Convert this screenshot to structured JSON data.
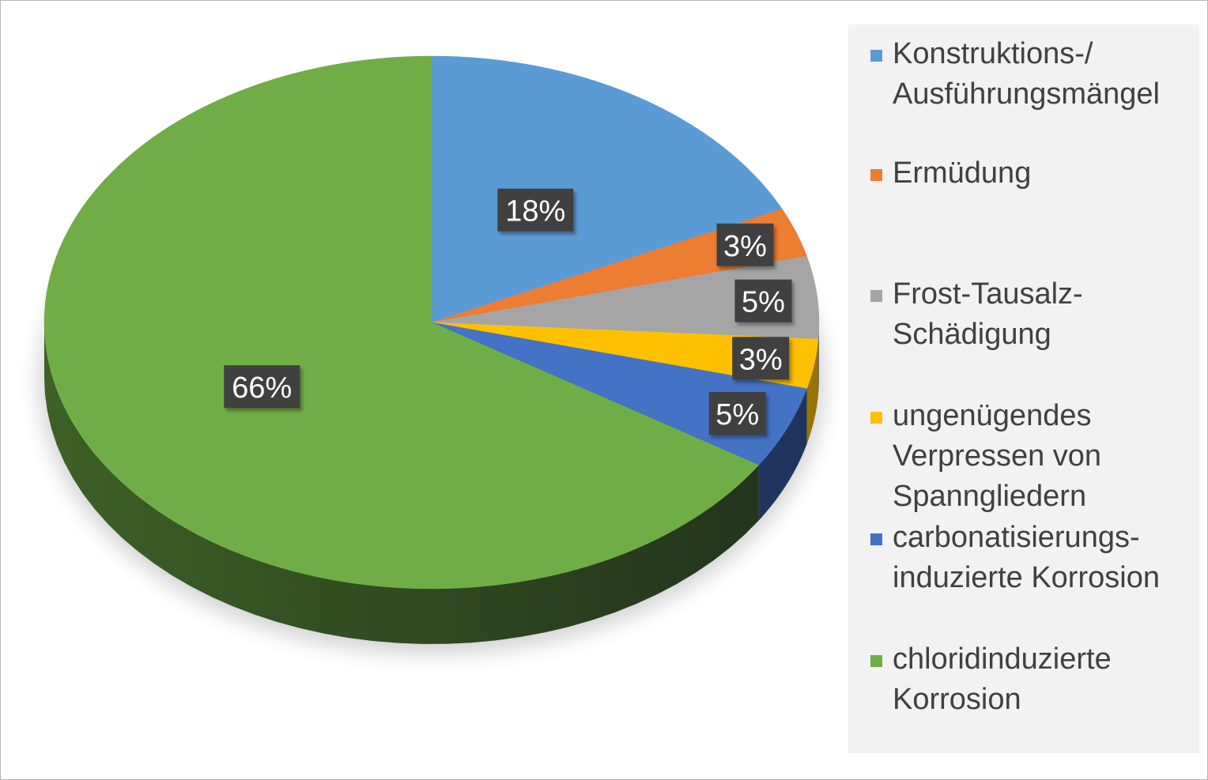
{
  "chart_data": {
    "type": "pie",
    "style": "3d",
    "categories": [
      "Konstruktions-/ Ausführungsmängel",
      "Ermüdung",
      "Frost-Tausalz-Schädigung",
      "ungenügendes Verpressen von Spanngliedern",
      "carbonatisierungs-induzierte Korrosion",
      "chloridinduzierte Korrosion"
    ],
    "values": [
      18,
      3,
      5,
      3,
      5,
      66
    ],
    "data_labels": [
      "18%",
      "3%",
      "5%",
      "3%",
      "5%",
      "66%"
    ],
    "colors": [
      "#5b9bd5",
      "#ed7d31",
      "#a5a5a5",
      "#ffc000",
      "#4472c4",
      "#70ad47"
    ],
    "side_colors": [
      "#2f5f8c",
      "#8a4a1c",
      "#636363",
      "#997300",
      "#1f355e",
      "#3d6127"
    ],
    "legend_position": "right",
    "legend_entries": [
      {
        "label": "Konstruktions-/\nAusführungsmängel",
        "color": "#5b9bd5"
      },
      {
        "label": "Ermüdung",
        "color": "#ed7d31"
      },
      {
        "label": "Frost-Tausalz-\nSchädigung",
        "color": "#a5a5a5"
      },
      {
        "label": "ungenügendes\nVerpressen von\nSpanngliedern",
        "color": "#ffc000"
      },
      {
        "label": "carbonatisierungs-\ninduzierte Korrosion",
        "color": "#4472c4"
      },
      {
        "label": "chloridinduzierte\nKorrosion",
        "color": "#70ad47"
      }
    ]
  }
}
